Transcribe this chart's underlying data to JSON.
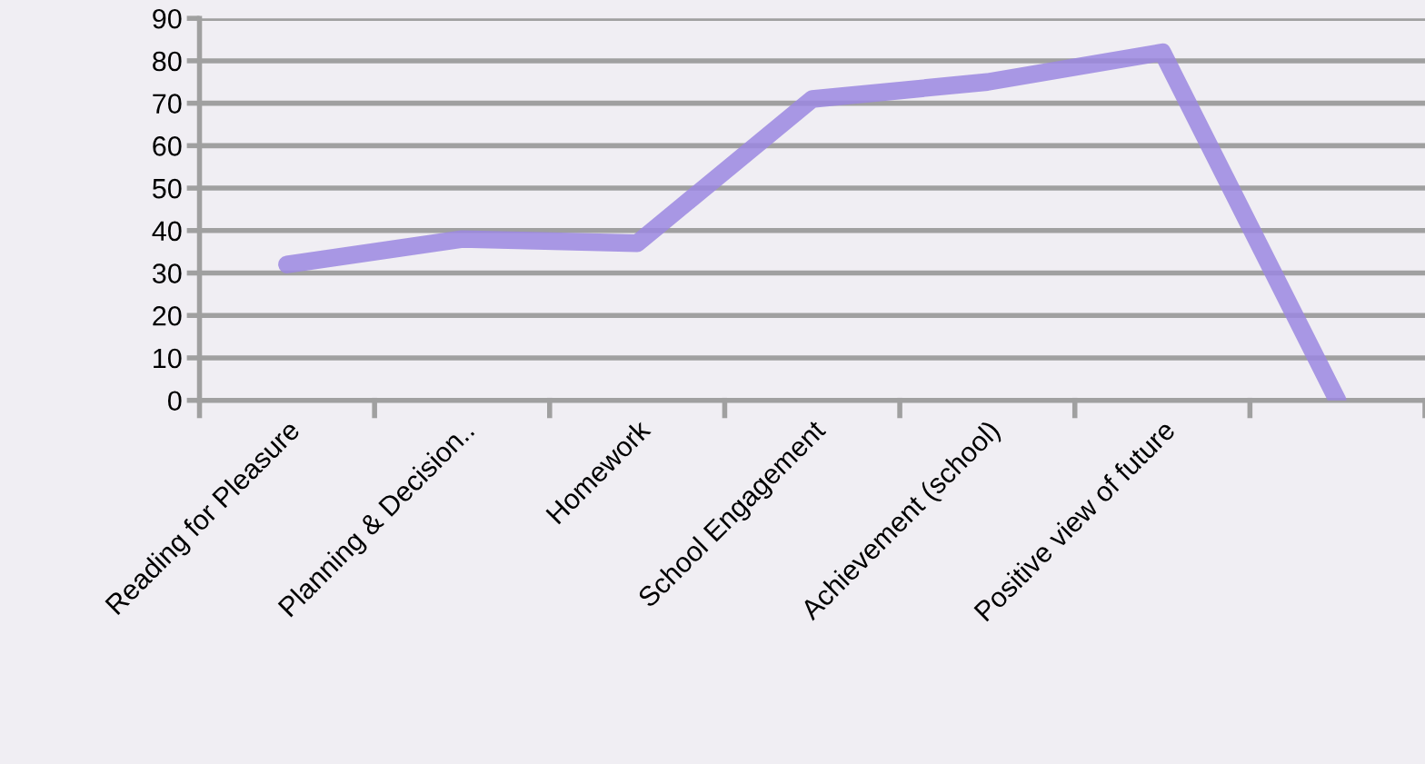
{
  "chart_data": {
    "type": "line",
    "categories": [
      "Reading for Pleasure",
      "Planning & Decision..",
      "Homework",
      "School Engagement",
      "Achievement (school)",
      "Positive view of future",
      null
    ],
    "series": [
      {
        "color": "#9b87e0",
        "values": [
          32,
          38,
          37,
          71,
          75,
          82,
          0
        ]
      }
    ],
    "ylim": [
      0,
      90
    ],
    "yticks": [
      0,
      10,
      20,
      30,
      40,
      50,
      60,
      70,
      80,
      90
    ],
    "grid": "y",
    "marker": "none",
    "line_style": "solid",
    "legend": false
  }
}
